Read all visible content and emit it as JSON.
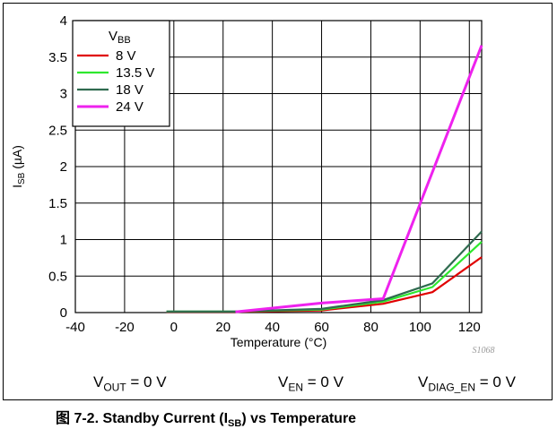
{
  "chart_data": {
    "type": "line",
    "xlabel": "Temperature (°C)",
    "ylabel_main": "I",
    "ylabel_sub": "SB",
    "ylabel_unit": " (µA)",
    "xlim": [
      -40,
      125
    ],
    "ylim": [
      0,
      4
    ],
    "x_ticks": [
      -40,
      -20,
      0,
      20,
      40,
      60,
      80,
      100,
      120
    ],
    "y_ticks": [
      0,
      0.5,
      1,
      1.5,
      2,
      2.5,
      3,
      3.5,
      4
    ],
    "y_tick_labels": [
      "0",
      "0.5",
      "1",
      "1.5",
      "2",
      "2.5",
      "3",
      "3.5",
      "4"
    ],
    "grid": true,
    "legend_position": "top-left",
    "legend_title_main": "V",
    "legend_title_sub": "BB",
    "watermark": "S1068",
    "series": [
      {
        "name": "8 V",
        "color": "#e00000",
        "x": [
          -3,
          25,
          60,
          85,
          105,
          125
        ],
        "y": [
          0.01,
          0.01,
          0.03,
          0.12,
          0.28,
          0.76
        ]
      },
      {
        "name": "13.5 V",
        "color": "#2ee82e",
        "x": [
          -3,
          25,
          60,
          85,
          105,
          125
        ],
        "y": [
          0.015,
          0.015,
          0.04,
          0.15,
          0.35,
          0.97
        ]
      },
      {
        "name": "18 V",
        "color": "#2f6b4f",
        "x": [
          -3,
          25,
          60,
          85,
          105,
          125
        ],
        "y": [
          0.015,
          0.015,
          0.05,
          0.17,
          0.4,
          1.11
        ]
      },
      {
        "name": "24 V",
        "color": "#ee22ee",
        "x": [
          25,
          60,
          85,
          125
        ],
        "y": [
          0.01,
          0.13,
          0.19,
          3.66
        ]
      }
    ]
  },
  "conditions": [
    {
      "main": "V",
      "sub": "OUT",
      "rest": " = 0 V"
    },
    {
      "main": "V",
      "sub": "EN",
      "rest": " = 0 V"
    },
    {
      "main": "V",
      "sub": "DIAG_EN",
      "rest": " = 0 V"
    }
  ],
  "caption": {
    "prefix": "图 7-2. Standby Current (I",
    "sub": "SB",
    "suffix": ") vs Temperature"
  }
}
